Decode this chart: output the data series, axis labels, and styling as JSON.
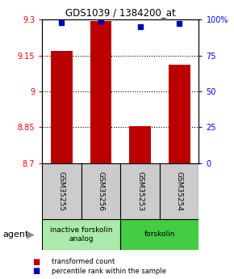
{
  "title": "GDS1039 / 1384200_at",
  "samples": [
    "GSM35255",
    "GSM35256",
    "GSM35253",
    "GSM35254"
  ],
  "red_values": [
    9.17,
    9.295,
    8.855,
    9.11
  ],
  "blue_values": [
    98,
    99,
    95,
    97
  ],
  "ymin": 8.7,
  "ymax": 9.3,
  "y2min": 0,
  "y2max": 100,
  "yticks": [
    8.7,
    8.85,
    9.0,
    9.15,
    9.3
  ],
  "ytick_labels": [
    "8.7",
    "8.85",
    "9",
    "9.15",
    "9.3"
  ],
  "y2ticks": [
    0,
    25,
    50,
    75,
    100
  ],
  "y2tick_labels": [
    "0",
    "25",
    "50",
    "75",
    "100%"
  ],
  "gridlines": [
    8.85,
    9.0,
    9.15
  ],
  "groups": [
    {
      "label": "inactive forskolin\nanalog",
      "samples": [
        0,
        1
      ],
      "color": "#aaeaaa"
    },
    {
      "label": "forskolin",
      "samples": [
        2,
        3
      ],
      "color": "#44cc44"
    }
  ],
  "bar_color": "#bb0000",
  "dot_color": "#0000bb",
  "bar_width": 0.55,
  "agent_label": "agent",
  "legend": [
    {
      "color": "#bb0000",
      "label": "transformed count"
    },
    {
      "color": "#0000bb",
      "label": "percentile rank within the sample"
    }
  ]
}
